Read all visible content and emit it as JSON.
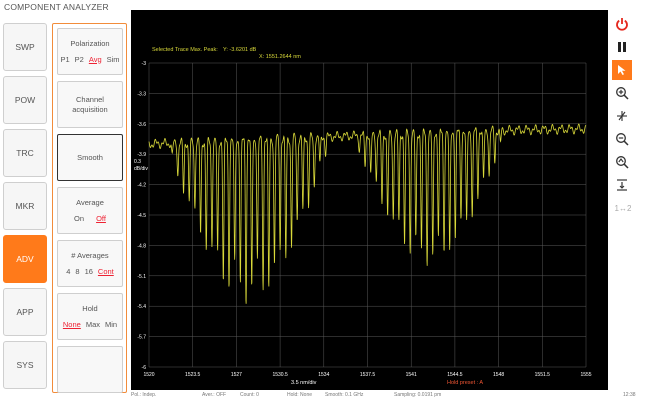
{
  "app": {
    "title": "COMPONENT ANALYZER"
  },
  "nav": [
    {
      "label": "SWP"
    },
    {
      "label": "POW"
    },
    {
      "label": "TRC"
    },
    {
      "label": "MKR"
    },
    {
      "label": "ADV",
      "active": true
    },
    {
      "label": "APP"
    },
    {
      "label": "SYS"
    }
  ],
  "softkeys": {
    "polarization": {
      "title": "Polarization",
      "options": [
        "P1",
        "P2",
        "Avg",
        "Sim"
      ],
      "selected": "Avg"
    },
    "channel": {
      "line1": "Channel",
      "line2": "acquisition"
    },
    "smooth": {
      "label": "Smooth"
    },
    "average": {
      "title": "Average",
      "options": [
        "On",
        "Off"
      ],
      "selected": "Off"
    },
    "averages": {
      "title": "# Averages",
      "options": [
        "4",
        "8",
        "16",
        "Cont"
      ],
      "selected": "Cont"
    },
    "hold": {
      "title": "Hold",
      "options": [
        "None",
        "Max",
        "Min"
      ],
      "selected": "None"
    }
  },
  "plot": {
    "peak_label": "Selected Trace Max. Peak:",
    "peak_y": "Y:  -3.6201 dB",
    "peak_x": "X:  1551.2644 nm",
    "y_scale_1": "0.3",
    "y_scale_2": "dB/div",
    "x_scale": "3.5 nm/div",
    "trace_color": "#d9d93a",
    "status_red": "Hold preset : A"
  },
  "chart_data": {
    "type": "line",
    "xlim": [
      1520,
      1555
    ],
    "ylim": [
      -6,
      -3
    ],
    "x_ticks": [
      "1520",
      "1523.5",
      "1527",
      "1530.5",
      "1534",
      "1537.5",
      "1541",
      "1544.5",
      "1548",
      "1551.5",
      "1555"
    ],
    "y_ticks": [
      "-3",
      "-3.3",
      "-3.6",
      "-3.9",
      "-4.2",
      "-4.5",
      "-4.8",
      "-5.1",
      "-5.4",
      "-5.7",
      "-6"
    ],
    "grid": true,
    "baseline": [
      [
        1520,
        -3.8
      ],
      [
        1530,
        -3.75
      ],
      [
        1540,
        -3.7
      ],
      [
        1550,
        -3.66
      ],
      [
        1555,
        -3.65
      ]
    ],
    "dip_groups": [
      {
        "x_start": 1521.4,
        "x_end": 1534.6,
        "count": 30,
        "min_depth": -5.35
      },
      {
        "x_start": 1536.4,
        "x_end": 1548.6,
        "count": 28,
        "min_depth": -5.0
      }
    ]
  },
  "toolbar": [
    {
      "name": "power-icon"
    },
    {
      "name": "pause-icon"
    },
    {
      "name": "pointer-icon",
      "active": true
    },
    {
      "name": "zoom-in-icon"
    },
    {
      "name": "marker-icon"
    },
    {
      "name": "zoom-out-icon"
    },
    {
      "name": "autoscale-icon"
    },
    {
      "name": "fit-icon"
    },
    {
      "name": "trace-1-2-icon",
      "label": "1↔2"
    }
  ],
  "status": {
    "pol": "Pol.: Indep.",
    "aver": "Aver.: OFF",
    "count": "Count: 0",
    "hold": "Hold: None",
    "smooth": "Smooth: 0.1 GHz",
    "sampling": "Sampling: 0.0191 pm",
    "time": "12:38"
  }
}
